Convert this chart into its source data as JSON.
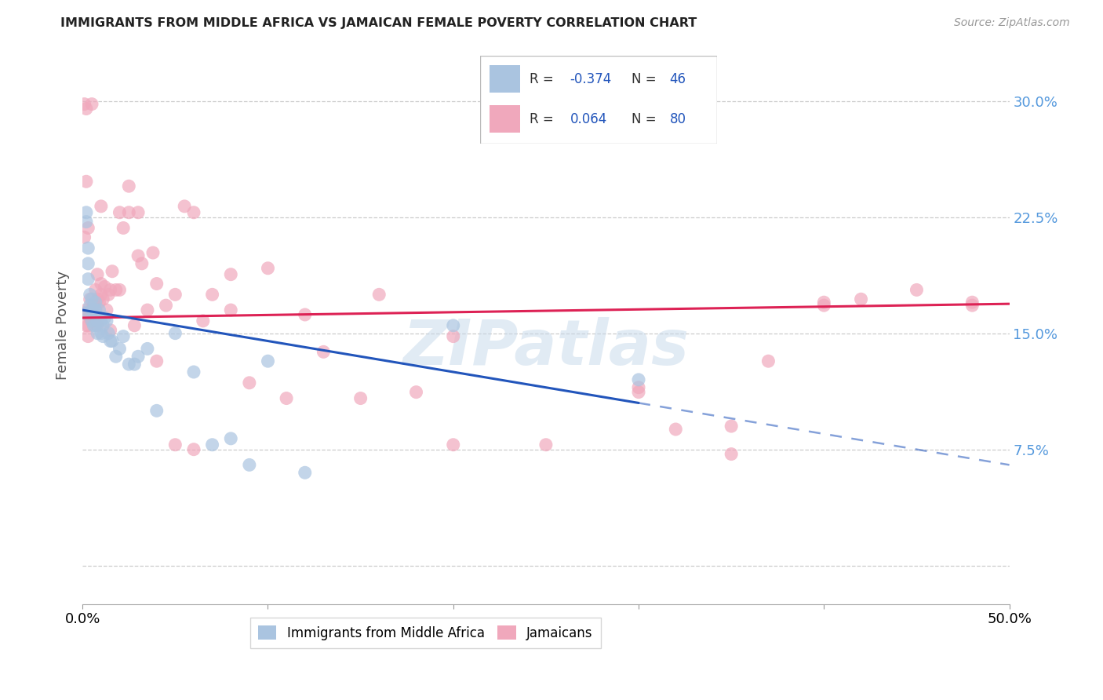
{
  "title": "IMMIGRANTS FROM MIDDLE AFRICA VS JAMAICAN FEMALE POVERTY CORRELATION CHART",
  "source": "Source: ZipAtlas.com",
  "ylabel": "Female Poverty",
  "xlim": [
    0.0,
    0.5
  ],
  "ylim": [
    -0.025,
    0.335
  ],
  "yticks": [
    0.0,
    0.075,
    0.15,
    0.225,
    0.3
  ],
  "ytick_labels": [
    "",
    "7.5%",
    "15.0%",
    "22.5%",
    "30.0%"
  ],
  "xticks": [
    0.0,
    0.1,
    0.2,
    0.3,
    0.4,
    0.5
  ],
  "xtick_labels": [
    "0.0%",
    "",
    "",
    "",
    "",
    "50.0%"
  ],
  "blue_color": "#aac4e0",
  "pink_color": "#f0a8bc",
  "blue_line_color": "#2255bb",
  "pink_line_color": "#dd2255",
  "watermark": "ZIPatlas",
  "blue_scatter_x": [
    0.001,
    0.002,
    0.002,
    0.003,
    0.003,
    0.003,
    0.004,
    0.004,
    0.005,
    0.005,
    0.005,
    0.006,
    0.006,
    0.007,
    0.007,
    0.007,
    0.008,
    0.008,
    0.009,
    0.009,
    0.01,
    0.01,
    0.011,
    0.011,
    0.012,
    0.013,
    0.014,
    0.015,
    0.016,
    0.018,
    0.02,
    0.022,
    0.025,
    0.028,
    0.03,
    0.035,
    0.04,
    0.05,
    0.06,
    0.07,
    0.08,
    0.09,
    0.1,
    0.12,
    0.2,
    0.3
  ],
  "blue_scatter_y": [
    0.163,
    0.228,
    0.222,
    0.205,
    0.195,
    0.185,
    0.175,
    0.168,
    0.172,
    0.165,
    0.158,
    0.165,
    0.155,
    0.17,
    0.165,
    0.155,
    0.158,
    0.15,
    0.165,
    0.16,
    0.158,
    0.15,
    0.155,
    0.148,
    0.16,
    0.158,
    0.15,
    0.145,
    0.145,
    0.135,
    0.14,
    0.148,
    0.13,
    0.13,
    0.135,
    0.14,
    0.1,
    0.15,
    0.125,
    0.078,
    0.082,
    0.065,
    0.132,
    0.06,
    0.155,
    0.12
  ],
  "pink_scatter_x": [
    0.001,
    0.001,
    0.002,
    0.002,
    0.003,
    0.003,
    0.004,
    0.004,
    0.005,
    0.005,
    0.006,
    0.006,
    0.007,
    0.007,
    0.008,
    0.008,
    0.009,
    0.01,
    0.01,
    0.011,
    0.012,
    0.013,
    0.014,
    0.015,
    0.016,
    0.018,
    0.02,
    0.022,
    0.025,
    0.028,
    0.03,
    0.032,
    0.035,
    0.038,
    0.04,
    0.045,
    0.05,
    0.055,
    0.06,
    0.065,
    0.07,
    0.08,
    0.09,
    0.1,
    0.11,
    0.13,
    0.15,
    0.16,
    0.18,
    0.2,
    0.25,
    0.3,
    0.32,
    0.35,
    0.37,
    0.4,
    0.42,
    0.45,
    0.48,
    0.002,
    0.003,
    0.005,
    0.008,
    0.01,
    0.015,
    0.02,
    0.025,
    0.03,
    0.04,
    0.05,
    0.06,
    0.08,
    0.12,
    0.2,
    0.3,
    0.4,
    0.001,
    0.002,
    0.35,
    0.48
  ],
  "pink_scatter_y": [
    0.298,
    0.163,
    0.155,
    0.165,
    0.155,
    0.148,
    0.16,
    0.172,
    0.165,
    0.158,
    0.168,
    0.158,
    0.178,
    0.165,
    0.155,
    0.172,
    0.17,
    0.175,
    0.182,
    0.172,
    0.18,
    0.165,
    0.175,
    0.178,
    0.19,
    0.178,
    0.228,
    0.218,
    0.245,
    0.155,
    0.2,
    0.195,
    0.165,
    0.202,
    0.182,
    0.168,
    0.175,
    0.232,
    0.228,
    0.158,
    0.175,
    0.165,
    0.118,
    0.192,
    0.108,
    0.138,
    0.108,
    0.175,
    0.112,
    0.078,
    0.078,
    0.112,
    0.088,
    0.072,
    0.132,
    0.168,
    0.172,
    0.178,
    0.17,
    0.248,
    0.218,
    0.298,
    0.188,
    0.232,
    0.152,
    0.178,
    0.228,
    0.228,
    0.132,
    0.078,
    0.075,
    0.188,
    0.162,
    0.148,
    0.115,
    0.17,
    0.212,
    0.295,
    0.09,
    0.168
  ]
}
